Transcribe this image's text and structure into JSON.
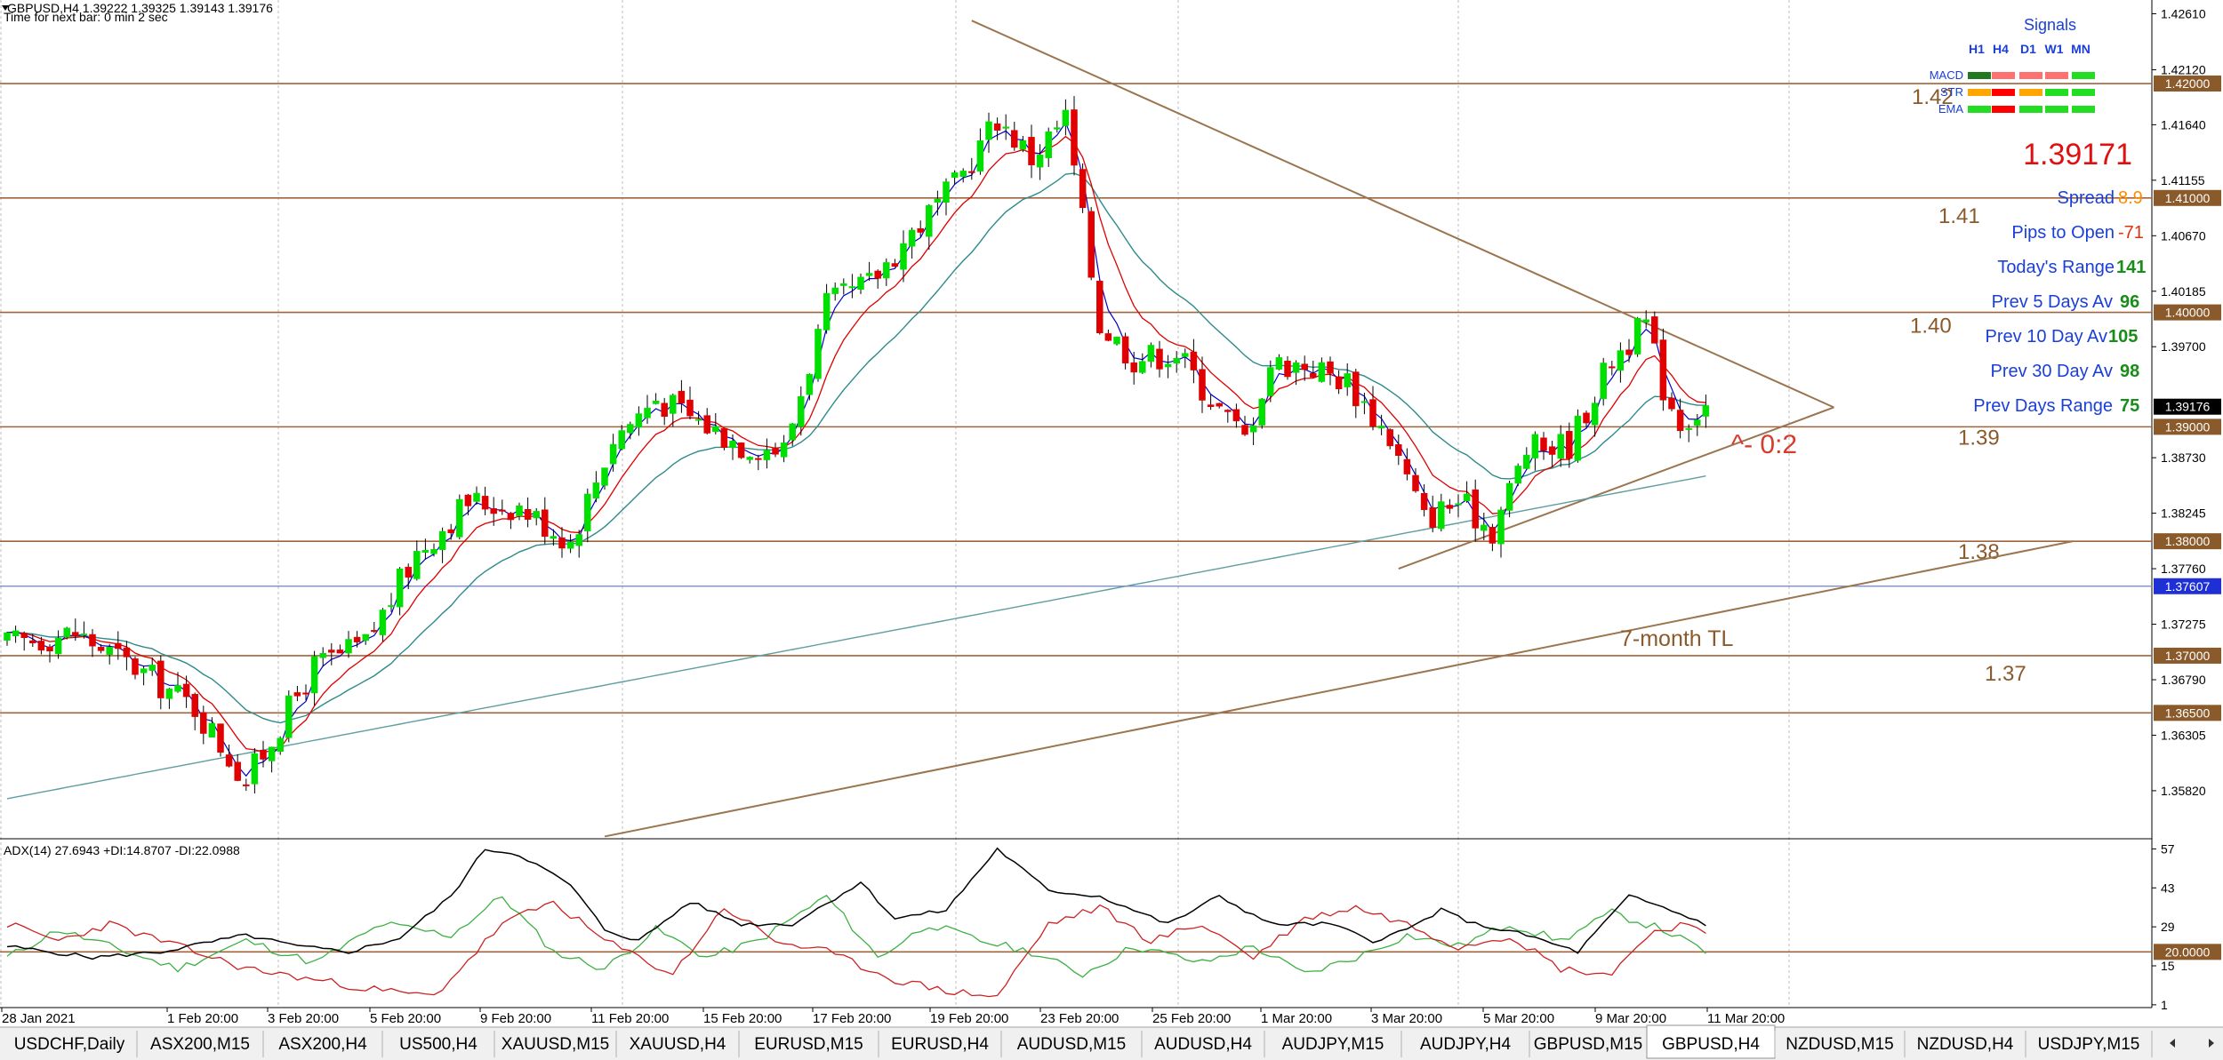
{
  "header": {
    "symbol_line": "GBPUSD,H4  1.39222 1.39325 1.39143 1.39176",
    "timer": "Time for next bar: 0 min 2 sec"
  },
  "chart_data": {
    "type": "candlestick",
    "symbol": "GBPUSD",
    "timeframe": "H4",
    "price_ylim": [
      1.354,
      1.4273
    ],
    "price_ticks": [
      "1.42610",
      "1.42120",
      "1.41640",
      "1.41155",
      "1.40670",
      "1.40185",
      "1.39700",
      "1.38730",
      "1.38245",
      "1.37760",
      "1.37275",
      "1.36790",
      "1.36305",
      "1.35820"
    ],
    "x_labels": [
      "28 Jan 2021",
      "1 Feb 20:00",
      "3 Feb 20:00",
      "5 Feb 20:00",
      "9 Feb 20:00",
      "11 Feb 20:00",
      "15 Feb 20:00",
      "17 Feb 20:00",
      "19 Feb 20:00",
      "23 Feb 20:00",
      "25 Feb 20:00",
      "1 Mar 20:00",
      "3 Mar 20:00",
      "5 Mar 20:00",
      "9 Mar 20:00",
      "11 Mar 20:00"
    ],
    "candle_count": 200,
    "close_anchors": [
      [
        0,
        1.371
      ],
      [
        8,
        1.372
      ],
      [
        16,
        1.3685
      ],
      [
        22,
        1.3655
      ],
      [
        28,
        1.359
      ],
      [
        36,
        1.369
      ],
      [
        42,
        1.371
      ],
      [
        48,
        1.379
      ],
      [
        54,
        1.3835
      ],
      [
        60,
        1.383
      ],
      [
        66,
        1.38
      ],
      [
        71,
        1.389
      ],
      [
        76,
        1.3925
      ],
      [
        81,
        1.3905
      ],
      [
        86,
        1.3885
      ],
      [
        91,
        1.388
      ],
      [
        96,
        1.4005
      ],
      [
        101,
        1.4025
      ],
      [
        106,
        1.407
      ],
      [
        111,
        1.411
      ],
      [
        116,
        1.417
      ],
      [
        120,
        1.4135
      ],
      [
        124,
        1.417
      ],
      [
        128,
        1.399
      ],
      [
        132,
        1.396
      ],
      [
        137,
        1.3965
      ],
      [
        142,
        1.3915
      ],
      [
        145,
        1.389
      ],
      [
        148,
        1.3955
      ],
      [
        152,
        1.3955
      ],
      [
        157,
        1.394
      ],
      [
        162,
        1.389
      ],
      [
        166,
        1.382
      ],
      [
        170,
        1.3835
      ],
      [
        174,
        1.381
      ],
      [
        178,
        1.388
      ],
      [
        183,
        1.3885
      ],
      [
        188,
        1.396
      ],
      [
        192,
        1.399
      ],
      [
        194,
        1.3935
      ],
      [
        196,
        1.3905
      ],
      [
        199,
        1.3918
      ]
    ],
    "candle_colors": {
      "up": "#00e000",
      "down": "#e00000"
    },
    "indicators": {
      "ema_fast_color": "#0000cc",
      "ema_mid_color": "#dd0000",
      "ema_slow_color": "#2e8b8b",
      "ma_long_color": "#5f9ea0"
    },
    "horizontal_levels": [
      {
        "price": 1.42,
        "label": "1.42",
        "tag": "1.42000"
      },
      {
        "price": 1.41,
        "label": "1.41",
        "tag": "1.41000"
      },
      {
        "price": 1.4,
        "label": "1.40",
        "tag": "1.40000"
      },
      {
        "price": 1.39,
        "label": "1.39",
        "tag": "1.39000"
      },
      {
        "price": 1.38,
        "label": "1.38",
        "tag": "1.38000"
      },
      {
        "price": 1.37,
        "label": "1.37",
        "tag": "1.37000"
      },
      {
        "price": 1.365,
        "label": "",
        "tag": "1.36500"
      }
    ],
    "blue_level": {
      "price": 1.37607,
      "tag": "1.37607"
    },
    "current_price": {
      "price": 1.39176,
      "tag": "1.39176"
    },
    "trendlines": [
      {
        "name": "triangle-upper",
        "from": [
          113,
          1.4255
        ],
        "to": [
          214,
          1.3917
        ]
      },
      {
        "name": "triangle-lower",
        "from": [
          163,
          1.3776
        ],
        "to": [
          214,
          1.3917
        ]
      },
      {
        "name": "7-month-tl",
        "from": [
          70,
          1.3542
        ],
        "to": [
          242,
          1.38
        ]
      }
    ],
    "annotations": {
      "trendline_label": "7-month TL",
      "triangle_note": "^- 0:2"
    },
    "adx": {
      "header": "ADX(14) 27.6943 +DI:14.8707 -DI:22.0988",
      "ylim": [
        0,
        60
      ],
      "ticks": [
        "57",
        "43",
        "29",
        "15",
        "1"
      ],
      "level_tag": "20.0000",
      "level": 20,
      "adx_color": "#000000",
      "plus_di_color": "#3cb043",
      "minus_di_color": "#cc2222"
    }
  },
  "signals": {
    "title": "Signals",
    "columns": [
      "H1",
      "H4",
      "D1",
      "W1",
      "MN"
    ],
    "rows": [
      {
        "label": "MACD",
        "colors": [
          "#1f7a1f",
          "#ff7070",
          "#ff7070",
          "#ff7070",
          "#22dd22"
        ]
      },
      {
        "label": "STR",
        "colors": [
          "#ffa500",
          "#ff0000",
          "#ffa500",
          "#22dd22",
          "#22dd22"
        ]
      },
      {
        "label": "EMA",
        "colors": [
          "#22dd22",
          "#ff0000",
          "#22dd22",
          "#22dd22",
          "#22dd22"
        ]
      }
    ]
  },
  "info": {
    "big_price": "1.39171",
    "spread_label": "Spread",
    "spread_value": "8.9",
    "pips_label": "Pips to Open",
    "pips_value": "-71",
    "today_label": "Today's Range",
    "today_value": "141",
    "prev5_label": "Prev 5 Days Av",
    "prev5_value": "96",
    "prev10_label": "Prev 10 Day Av",
    "prev10_value": "105",
    "prev30_label": "Prev 30 Day Av",
    "prev30_value": "98",
    "prevdays_label": "Prev Days Range",
    "prevdays_value": "75"
  },
  "tabs": [
    "USDCHF,Daily",
    "ASX200,M15",
    "ASX200,H4",
    "US500,H4",
    "XAUUSD,M15",
    "XAUUSD,H4",
    "EURUSD,M15",
    "EURUSD,H4",
    "AUDUSD,M15",
    "AUDUSD,H4",
    "AUDJPY,M15",
    "AUDJPY,H4",
    "GBPUSD,M15",
    "GBPUSD,H4",
    "NZDUSD,M15",
    "NZDUSD,H4",
    "USDJPY,M15"
  ],
  "active_tab": "GBPUSD,H4"
}
